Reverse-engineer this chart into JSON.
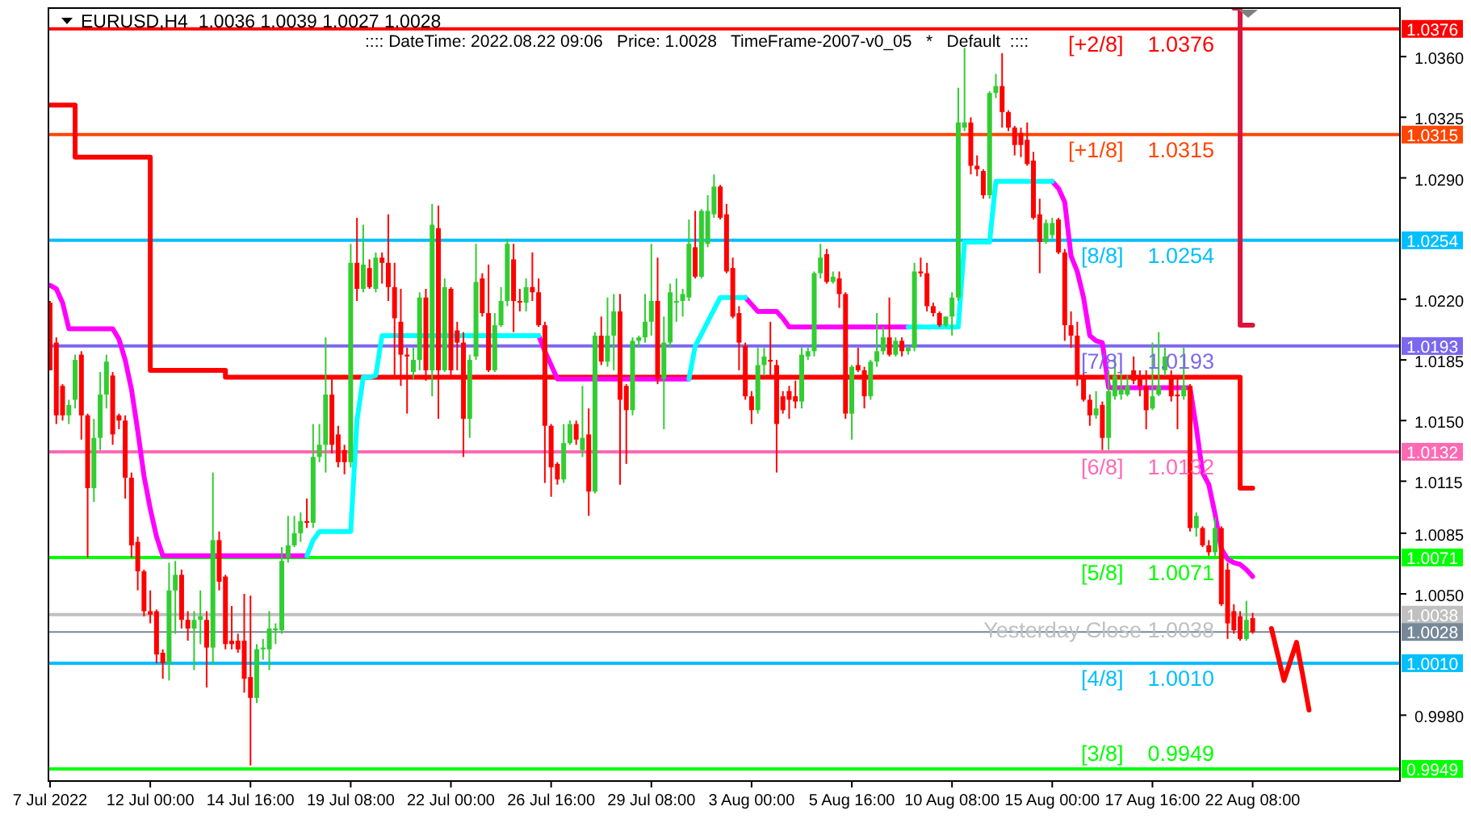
{
  "chart_data": {
    "type": "candlestick",
    "title": "EURUSD,H4  1.0036 1.0039 1.0027 1.0028",
    "subtitle": ":::: DateTime: 2022.08.22 09:06   Price: 1.0028   TimeFrame-2007-v0_05   *   Default  ::::",
    "categories": [
      "7 Jul 2022",
      null,
      null,
      null,
      null,
      null,
      null,
      null,
      null,
      null,
      null,
      null,
      null,
      null,
      null,
      null,
      "12 Jul 00:00",
      null,
      null,
      null,
      null,
      null,
      null,
      null,
      null,
      null,
      null,
      null,
      null,
      null,
      null,
      null,
      "14 Jul 16:00",
      null,
      null,
      null,
      null,
      null,
      null,
      null,
      null,
      null,
      null,
      null,
      null,
      null,
      null,
      null,
      "19 Jul 08:00",
      null,
      null,
      null,
      null,
      null,
      null,
      null,
      null,
      null,
      null,
      null,
      null,
      null,
      null,
      null,
      "22 Jul 00:00",
      null,
      null,
      null,
      null,
      null,
      null,
      null,
      null,
      null,
      null,
      null,
      null,
      null,
      null,
      null,
      "26 Jul 16:00",
      null,
      null,
      null,
      null,
      null,
      null,
      null,
      null,
      null,
      null,
      null,
      null,
      null,
      null,
      null,
      "29 Jul 08:00",
      null,
      null,
      null,
      null,
      null,
      null,
      null,
      null,
      null,
      null,
      null,
      null,
      null,
      null,
      null,
      "3 Aug 00:00",
      null,
      null,
      null,
      null,
      null,
      null,
      null,
      null,
      null,
      null,
      null,
      null,
      null,
      null,
      null,
      "5 Aug 16:00",
      null,
      null,
      null,
      null,
      null,
      null,
      null,
      null,
      null,
      null,
      null,
      null,
      null,
      null,
      null,
      "10 Aug 08:00",
      null,
      null,
      null,
      null,
      null,
      null,
      null,
      null,
      null,
      null,
      null,
      null,
      null,
      null,
      null,
      "15 Aug 00:00",
      null,
      null,
      null,
      null,
      null,
      null,
      null,
      null,
      null,
      null,
      null,
      null,
      null,
      null,
      null,
      "17 Aug 16:00",
      null,
      null,
      null,
      null,
      null,
      null,
      null,
      null,
      null,
      null,
      null,
      null,
      null,
      null,
      null,
      "22 Aug 08:00",
      null,
      null,
      null,
      null,
      null,
      null,
      null,
      null,
      null,
      null,
      null,
      null,
      null,
      null,
      null,
      null,
      null,
      null,
      null,
      null,
      null,
      null,
      null
    ],
    "ohlc": [
      [
        1.0218,
        1.0219,
        1.0179,
        1.0179
      ],
      [
        1.0195,
        1.0198,
        1.0148,
        1.0153
      ],
      [
        1.017,
        1.0171,
        1.015,
        1.0153
      ],
      [
        1.0153,
        1.0162,
        1.0148,
        1.0159
      ],
      [
        1.0162,
        1.0188,
        1.0157,
        1.0185
      ],
      [
        1.0188,
        1.019,
        1.0139,
        1.0153
      ],
      [
        1.0153,
        1.0154,
        1.0071,
        1.0111
      ],
      [
        1.0111,
        1.0151,
        1.0103,
        1.014
      ],
      [
        1.014,
        1.0178,
        1.0133,
        1.0165
      ],
      [
        1.0165,
        1.0188,
        1.0157,
        1.0184
      ],
      [
        1.0176,
        1.0178,
        1.0136,
        1.0142
      ],
      [
        1.0153,
        1.0154,
        1.0145,
        1.015
      ],
      [
        1.015,
        1.0153,
        1.0105,
        1.0117
      ],
      [
        1.0117,
        1.012,
        1.0071,
        1.0078
      ],
      [
        1.008,
        1.0083,
        1.0052,
        1.0063
      ],
      [
        1.0063,
        1.0064,
        1.0037,
        1.004
      ],
      [
        1.004,
        1.0052,
        1.0033,
        1.0038
      ],
      [
        1.004,
        1.0041,
        1.001,
        1.0015
      ],
      [
        1.0016,
        1.0018,
        1.0001,
        1.001
      ],
      [
        1.001,
        1.0068,
        1.0,
        1.0052
      ],
      [
        1.0052,
        1.0069,
        1.0027,
        1.0061
      ],
      [
        1.0061,
        1.0064,
        1.003,
        1.0035
      ],
      [
        1.0035,
        1.004,
        1.0023,
        1.003
      ],
      [
        1.003,
        1.004,
        1.0006,
        1.0035
      ],
      [
        1.0035,
        1.0052,
        1.0021,
        1.0037
      ],
      [
        1.0035,
        1.004,
        0.9996,
        1.0019
      ],
      [
        1.0019,
        1.012,
        1.0009,
        1.0081
      ],
      [
        1.0081,
        1.0086,
        1.0052,
        1.0057
      ],
      [
        1.006,
        1.0061,
        1.0018,
        1.0021
      ],
      [
        1.0023,
        1.0043,
        1.0018,
        1.0021
      ],
      [
        1.0023,
        1.0027,
        1.0016,
        1.0018
      ],
      [
        1.0023,
        1.005,
        0.9993,
        1.0001
      ],
      [
        1.0002,
        1.0049,
        0.9951,
        0.999
      ],
      [
        0.999,
        1.0021,
        0.9987,
        1.0018
      ],
      [
        1.0018,
        1.0024,
        1.0012,
        1.0019
      ],
      [
        1.0018,
        1.004,
        1.0006,
        1.003
      ],
      [
        1.0029,
        1.0033,
        1.0021,
        1.003
      ],
      [
        1.0029,
        1.0077,
        1.0027,
        1.0069
      ],
      [
        1.0071,
        1.0095,
        1.0068,
        1.0078
      ],
      [
        1.0078,
        1.0095,
        1.0077,
        1.0085
      ],
      [
        1.0085,
        1.0097,
        1.008,
        1.0092
      ],
      [
        1.0092,
        1.0105,
        1.0088,
        1.0091
      ],
      [
        1.0091,
        1.0148,
        1.0088,
        1.0129
      ],
      [
        1.0129,
        1.0148,
        1.0126,
        1.0136
      ],
      [
        1.0136,
        1.0198,
        1.012,
        1.0165
      ],
      [
        1.0165,
        1.0176,
        1.0131,
        1.0136
      ],
      [
        1.0142,
        1.0147,
        1.0123,
        1.0126
      ],
      [
        1.0133,
        1.0136,
        1.0119,
        1.0126
      ],
      [
        1.0126,
        1.0252,
        1.0123,
        1.0241
      ],
      [
        1.0241,
        1.0267,
        1.0219,
        1.0226
      ],
      [
        1.0226,
        1.0263,
        1.0224,
        1.024
      ],
      [
        1.0238,
        1.0243,
        1.0226,
        1.0227
      ],
      [
        1.0226,
        1.0247,
        1.0224,
        1.0244
      ],
      [
        1.0244,
        1.0247,
        1.0229,
        1.0241
      ],
      [
        1.0241,
        1.0269,
        1.0219,
        1.0227
      ],
      [
        1.0227,
        1.0241,
        1.0176,
        1.0209
      ],
      [
        1.0207,
        1.0226,
        1.017,
        1.0188
      ],
      [
        1.0188,
        1.0192,
        1.0154,
        1.0187
      ],
      [
        1.0178,
        1.0192,
        1.0174,
        1.0185
      ],
      [
        1.0185,
        1.0224,
        1.0179,
        1.0221
      ],
      [
        1.0221,
        1.0226,
        1.0173,
        1.0179
      ],
      [
        1.0179,
        1.0275,
        1.0164,
        1.0263
      ],
      [
        1.0261,
        1.0274,
        1.0151,
        1.0179
      ],
      [
        1.0179,
        1.0232,
        1.0178,
        1.0227
      ],
      [
        1.0226,
        1.0227,
        1.0176,
        1.0179
      ],
      [
        1.0202,
        1.0207,
        1.0179,
        1.0195
      ],
      [
        1.0195,
        1.0201,
        1.0129,
        1.0151
      ],
      [
        1.0151,
        1.0188,
        1.014,
        1.0185
      ],
      [
        1.0187,
        1.0252,
        1.0185,
        1.023
      ],
      [
        1.0232,
        1.0235,
        1.021,
        1.0212
      ],
      [
        1.0212,
        1.024,
        1.0178,
        1.0179
      ],
      [
        1.0179,
        1.0212,
        1.0178,
        1.0205
      ],
      [
        1.0205,
        1.0227,
        1.0204,
        1.0219
      ],
      [
        1.0219,
        1.0255,
        1.0216,
        1.0252
      ],
      [
        1.0243,
        1.0252,
        1.0201,
        1.0219
      ],
      [
        1.0219,
        1.0226,
        1.0213,
        1.0218
      ],
      [
        1.0218,
        1.0232,
        1.0213,
        1.0227
      ],
      [
        1.0227,
        1.0247,
        1.0219,
        1.0224
      ],
      [
        1.0224,
        1.0232,
        1.0204,
        1.0205
      ],
      [
        1.0205,
        1.0207,
        1.0114,
        1.0147
      ],
      [
        1.0147,
        1.0148,
        1.0106,
        1.0123
      ],
      [
        1.0125,
        1.0126,
        1.0113,
        1.0116
      ],
      [
        1.0116,
        1.0148,
        1.0114,
        1.0137
      ],
      [
        1.0137,
        1.015,
        1.0136,
        1.0148
      ],
      [
        1.0148,
        1.015,
        1.0136,
        1.0139
      ],
      [
        1.0133,
        1.017,
        1.0129,
        1.014
      ],
      [
        1.0142,
        1.0157,
        1.0095,
        1.0109
      ],
      [
        1.0109,
        1.0201,
        1.0108,
        1.0199
      ],
      [
        1.0199,
        1.021,
        1.0182,
        1.0184
      ],
      [
        1.0184,
        1.0221,
        1.0181,
        1.0199
      ],
      [
        1.0199,
        1.0223,
        1.0179,
        1.0213
      ],
      [
        1.0213,
        1.0223,
        1.0113,
        1.0162
      ],
      [
        1.017,
        1.0171,
        1.0125,
        1.0156
      ],
      [
        1.0156,
        1.0198,
        1.0153,
        1.0196
      ],
      [
        1.0196,
        1.0199,
        1.0192,
        1.0198
      ],
      [
        1.0198,
        1.0223,
        1.0195,
        1.0207
      ],
      [
        1.0207,
        1.0252,
        1.0199,
        1.0219
      ],
      [
        1.0219,
        1.0244,
        1.0171,
        1.0174
      ],
      [
        1.0174,
        1.021,
        1.0145,
        1.0195
      ],
      [
        1.0195,
        1.0229,
        1.0192,
        1.0224
      ],
      [
        1.0218,
        1.0232,
        1.0207,
        1.0219
      ],
      [
        1.0219,
        1.0226,
        1.021,
        1.0223
      ],
      [
        1.0221,
        1.0266,
        1.0219,
        1.0252
      ],
      [
        1.025,
        1.0271,
        1.0232,
        1.0233
      ],
      [
        1.0233,
        1.0272,
        1.0232,
        1.0271
      ],
      [
        1.0252,
        1.028,
        1.025,
        1.0271
      ],
      [
        1.0269,
        1.0292,
        1.0267,
        1.0285
      ],
      [
        1.0285,
        1.0286,
        1.0266,
        1.0267
      ],
      [
        1.0269,
        1.0275,
        1.0235,
        1.0236
      ],
      [
        1.0238,
        1.0244,
        1.0209,
        1.021
      ],
      [
        1.0212,
        1.0216,
        1.0179,
        1.0195
      ],
      [
        1.0193,
        1.0195,
        1.0162,
        1.0164
      ],
      [
        1.0164,
        1.0167,
        1.0148,
        1.0156
      ],
      [
        1.0156,
        1.0192,
        1.0154,
        1.0182
      ],
      [
        1.0182,
        1.0192,
        1.0176,
        1.0187
      ],
      [
        1.0185,
        1.0207,
        1.0176,
        1.0184
      ],
      [
        1.0182,
        1.0185,
        1.012,
        1.0148
      ],
      [
        1.0164,
        1.0167,
        1.0154,
        1.0156
      ],
      [
        1.0167,
        1.017,
        1.0151,
        1.0162
      ],
      [
        1.0164,
        1.0173,
        1.0157,
        1.0161
      ],
      [
        1.0161,
        1.0192,
        1.0157,
        1.0188
      ],
      [
        1.0187,
        1.0192,
        1.0185,
        1.019
      ],
      [
        1.019,
        1.0236,
        1.0187,
        1.0235
      ],
      [
        1.0235,
        1.0252,
        1.0232,
        1.0244
      ],
      [
        1.0246,
        1.0249,
        1.0229,
        1.023
      ],
      [
        1.023,
        1.0236,
        1.0229,
        1.0233
      ],
      [
        1.0232,
        1.0236,
        1.0215,
        1.0223
      ],
      [
        1.0223,
        1.0224,
        1.0151,
        1.0154
      ],
      [
        1.0154,
        1.0182,
        1.0139,
        1.0181
      ],
      [
        1.0182,
        1.0192,
        1.0178,
        1.0179
      ],
      [
        1.0179,
        1.0181,
        1.0157,
        1.0164
      ],
      [
        1.0164,
        1.0185,
        1.0162,
        1.0184
      ],
      [
        1.0184,
        1.0212,
        1.0181,
        1.019
      ],
      [
        1.019,
        1.0204,
        1.0188,
        1.0198
      ],
      [
        1.0198,
        1.0221,
        1.0187,
        1.0188
      ],
      [
        1.0188,
        1.0198,
        1.0187,
        1.0196
      ],
      [
        1.0196,
        1.0198,
        1.0187,
        1.019
      ],
      [
        1.019,
        1.0193,
        1.0188,
        1.0192
      ],
      [
        1.0192,
        1.0241,
        1.019,
        1.0236
      ],
      [
        1.0236,
        1.0244,
        1.0233,
        1.0235
      ],
      [
        1.0235,
        1.0241,
        1.0213,
        1.0216
      ],
      [
        1.0216,
        1.0218,
        1.021,
        1.0212
      ],
      [
        1.0212,
        1.0213,
        1.0204,
        1.0205
      ],
      [
        1.0205,
        1.021,
        1.0204,
        1.021
      ],
      [
        1.021,
        1.0224,
        1.0199,
        1.0221
      ],
      [
        1.0221,
        1.0342,
        1.0219,
        1.0322
      ],
      [
        1.0319,
        1.0365,
        1.0317,
        1.0322
      ],
      [
        1.0322,
        1.0325,
        1.0292,
        1.0297
      ],
      [
        1.0297,
        1.0303,
        1.0291,
        1.0295
      ],
      [
        1.0294,
        1.0295,
        1.0278,
        1.028
      ],
      [
        1.028,
        1.034,
        1.0278,
        1.0339
      ],
      [
        1.0339,
        1.035,
        1.0336,
        1.0343
      ],
      [
        1.0343,
        1.0362,
        1.0319,
        1.0328
      ],
      [
        1.0328,
        1.0329,
        1.0317,
        1.0319
      ],
      [
        1.0319,
        1.032,
        1.0303,
        1.0309
      ],
      [
        1.0316,
        1.0319,
        1.0302,
        1.0309
      ],
      [
        1.0312,
        1.0322,
        1.0297,
        1.0298
      ],
      [
        1.03,
        1.0305,
        1.0266,
        1.0267
      ],
      [
        1.0269,
        1.0278,
        1.0235,
        1.0253
      ],
      [
        1.0253,
        1.0266,
        1.0252,
        1.0264
      ],
      [
        1.0257,
        1.0267,
        1.0255,
        1.0264
      ],
      [
        1.0266,
        1.0267,
        1.0246,
        1.0247
      ],
      [
        1.0247,
        1.0249,
        1.0196,
        1.0205
      ],
      [
        1.0205,
        1.0213,
        1.0192,
        1.0199
      ],
      [
        1.0199,
        1.0207,
        1.017,
        1.0174
      ],
      [
        1.0176,
        1.0178,
        1.0161,
        1.0162
      ],
      [
        1.0162,
        1.0165,
        1.0147,
        1.0153
      ],
      [
        1.0153,
        1.0167,
        1.0151,
        1.0157
      ],
      [
        1.0159,
        1.0161,
        1.0133,
        1.014
      ],
      [
        1.014,
        1.0179,
        1.0133,
        1.0167
      ],
      [
        1.0164,
        1.0185,
        1.0162,
        1.0176
      ],
      [
        1.0165,
        1.0179,
        1.0162,
        1.0168
      ],
      [
        1.0165,
        1.0176,
        1.0164,
        1.017
      ],
      [
        1.0179,
        1.0187,
        1.0171,
        1.0173
      ],
      [
        1.0176,
        1.0179,
        1.0164,
        1.017
      ],
      [
        1.017,
        1.0179,
        1.0145,
        1.0156
      ],
      [
        1.0157,
        1.0195,
        1.0156,
        1.0164
      ],
      [
        1.0165,
        1.0201,
        1.0164,
        1.017
      ],
      [
        1.0179,
        1.0192,
        1.0176,
        1.0187
      ],
      [
        1.0176,
        1.0179,
        1.0161,
        1.0164
      ],
      [
        1.0165,
        1.0176,
        1.0145,
        1.0164
      ],
      [
        1.0164,
        1.0192,
        1.0162,
        1.017
      ],
      [
        1.017,
        1.0171,
        1.0086,
        1.0088
      ],
      [
        1.0088,
        1.0097,
        1.0083,
        1.0095
      ],
      [
        1.0088,
        1.0089,
        1.0077,
        1.0078
      ],
      [
        1.0078,
        1.0081,
        1.0072,
        1.0074
      ],
      [
        1.0074,
        1.0094,
        1.0072,
        1.0088
      ],
      [
        1.0088,
        1.0089,
        1.0043,
        1.0044
      ],
      [
        1.0064,
        1.0068,
        1.0024,
        1.0033
      ],
      [
        1.004,
        1.0044,
        1.0027,
        1.0029
      ],
      [
        1.0037,
        1.004,
        1.0023,
        1.0024
      ],
      [
        1.0024,
        1.0046,
        1.0023,
        1.0035
      ],
      [
        1.0036,
        1.0039,
        1.0027,
        1.0028
      ],
      null,
      null,
      null,
      null,
      null,
      null,
      null,
      null,
      null,
      null,
      null,
      null,
      null,
      null,
      null,
      null,
      null,
      null,
      null,
      null,
      null,
      null,
      null
    ],
    "ylim": [
      0.9942,
      1.0388
    ],
    "yticks": [
      {
        "value": 1.0376,
        "label": "1.0376"
      },
      {
        "value": 1.036,
        "label": "1.0360"
      },
      {
        "value": 1.0325,
        "label": "1.0325"
      },
      {
        "value": 1.0315,
        "label": "1.0315"
      },
      {
        "value": 1.029,
        "label": "1.0290"
      },
      {
        "value": 1.0254,
        "label": "1.0254"
      },
      {
        "value": 1.022,
        "label": "1.0220"
      },
      {
        "value": 1.0193,
        "label": "1.0193"
      },
      {
        "value": 1.0185,
        "label": "1.0185"
      },
      {
        "value": 1.015,
        "label": "1.0150"
      },
      {
        "value": 1.0132,
        "label": "1.0132"
      },
      {
        "value": 1.0115,
        "label": "1.0115"
      },
      {
        "value": 1.0085,
        "label": "1.0085"
      },
      {
        "value": 1.0071,
        "label": "1.0071"
      },
      {
        "value": 1.005,
        "label": "1.0050"
      },
      {
        "value": 1.0038,
        "label": "1.0038"
      },
      {
        "value": 1.0028,
        "label": "1.0028"
      },
      {
        "value": 1.001,
        "label": "1.0010"
      },
      {
        "value": 0.998,
        "label": "0.9980"
      },
      {
        "value": 0.9949,
        "label": "0.9949"
      }
    ],
    "series": [
      {
        "type": "step",
        "color": "#ff0000",
        "values": [
          1.0332,
          1.0332,
          1.0332,
          1.0332,
          1.0302,
          1.0302,
          1.0302,
          1.0302,
          1.0302,
          1.0302,
          1.0302,
          1.0302,
          1.0302,
          1.0302,
          1.0302,
          1.0302,
          1.0179,
          1.0179,
          1.0179,
          1.0179,
          1.0179,
          1.0179,
          1.0179,
          1.0179,
          1.0179,
          1.0179,
          1.0179,
          1.0179,
          1.0175,
          1.0175,
          1.0175,
          1.0175,
          1.0175,
          1.0175,
          1.0175,
          1.0175,
          1.0175,
          1.0175,
          1.0175,
          1.0175,
          1.0175,
          1.0175,
          1.0175,
          1.0175,
          1.0175,
          1.0175,
          1.0175,
          1.0175,
          1.0175,
          1.0175,
          1.0175,
          1.0175,
          1.0175,
          1.0175,
          1.0175,
          1.0175,
          1.0175,
          1.0175,
          1.0175,
          1.0175,
          1.0175,
          1.0175,
          1.0175,
          1.0175,
          1.0175,
          1.0175,
          1.0175,
          1.0175,
          1.0175,
          1.0175,
          1.0175,
          1.0175,
          1.0175,
          1.0175,
          1.0175,
          1.0175,
          1.0175,
          1.0175,
          1.0175,
          1.0175,
          1.0175,
          1.0175,
          1.0175,
          1.0175,
          1.0175,
          1.0175,
          1.0175,
          1.0175,
          1.0175,
          1.0175,
          1.0175,
          1.0175,
          1.0175,
          1.0175,
          1.0175,
          1.0175,
          1.0175,
          1.0175,
          1.0175,
          1.0175,
          1.0175,
          1.0175,
          1.0175,
          1.0175,
          1.0175,
          1.0175,
          1.0175,
          1.0175,
          1.0175,
          1.0175,
          1.0175,
          1.0175,
          1.0175,
          1.0175,
          1.0175,
          1.0175,
          1.0175,
          1.0175,
          1.0175,
          1.0175,
          1.0175,
          1.0175,
          1.0175,
          1.0175,
          1.0175,
          1.0175,
          1.0175,
          1.0175,
          1.0175,
          1.0175,
          1.0175,
          1.0175,
          1.0175,
          1.0175,
          1.0175,
          1.0175,
          1.0175,
          1.0175,
          1.0175,
          1.0175,
          1.0175,
          1.0175,
          1.0175,
          1.0175,
          1.0175,
          1.0175,
          1.0175,
          1.0175,
          1.0175,
          1.0175,
          1.0175,
          1.0175,
          1.0175,
          1.0175,
          1.0175,
          1.0175,
          1.0175,
          1.0175,
          1.0175,
          1.0175,
          1.0175,
          1.0175,
          1.0175,
          1.0175,
          1.0175,
          1.0175,
          1.0175,
          1.0175,
          1.0175,
          1.0175,
          1.0175,
          1.0175,
          1.0175,
          1.0175,
          1.0175,
          1.0175,
          1.0175,
          1.0175,
          1.0175,
          1.0175,
          1.0175,
          1.0175,
          1.0175,
          1.0175,
          1.0175,
          1.0175,
          1.0175,
          1.0175,
          1.0175,
          1.0175,
          1.0111,
          1.0111,
          1.0111,
          null,
          null,
          null,
          null,
          null,
          null,
          null,
          null,
          null,
          null,
          null,
          null,
          null,
          null,
          null,
          null,
          null,
          null,
          null,
          null,
          null,
          null,
          null
        ]
      },
      {
        "type": "step",
        "color": "#dc143c",
        "values": [
          null,
          null,
          null,
          null,
          null,
          null,
          null,
          null,
          null,
          null,
          null,
          null,
          null,
          null,
          null,
          null,
          null,
          null,
          null,
          null,
          null,
          null,
          null,
          null,
          null,
          null,
          null,
          null,
          null,
          null,
          null,
          null,
          null,
          null,
          null,
          null,
          null,
          null,
          null,
          null,
          null,
          null,
          null,
          null,
          null,
          null,
          null,
          null,
          null,
          null,
          null,
          null,
          null,
          null,
          null,
          null,
          null,
          null,
          null,
          null,
          null,
          null,
          null,
          null,
          null,
          null,
          null,
          null,
          null,
          null,
          null,
          null,
          null,
          null,
          null,
          null,
          null,
          null,
          null,
          null,
          null,
          null,
          null,
          null,
          null,
          null,
          null,
          null,
          null,
          null,
          null,
          null,
          null,
          null,
          null,
          null,
          null,
          null,
          null,
          null,
          null,
          null,
          null,
          null,
          null,
          null,
          null,
          null,
          null,
          null,
          null,
          null,
          null,
          null,
          null,
          null,
          null,
          null,
          null,
          null,
          null,
          null,
          null,
          null,
          null,
          null,
          null,
          null,
          null,
          null,
          null,
          null,
          null,
          null,
          null,
          null,
          null,
          null,
          null,
          null,
          null,
          null,
          null,
          null,
          null,
          null,
          null,
          null,
          null,
          null,
          null,
          null,
          null,
          null,
          null,
          null,
          null,
          null,
          null,
          null,
          null,
          null,
          null,
          null,
          null,
          null,
          null,
          null,
          null,
          null,
          null,
          null,
          null,
          null,
          null,
          null,
          null,
          null,
          null,
          null,
          null,
          null,
          null,
          null,
          null,
          null,
          null,
          null,
          null,
          1.0388,
          1.0205,
          1.0205,
          1.0205,
          null,
          null,
          null,
          null,
          null,
          null,
          null,
          null,
          null,
          null,
          null,
          null,
          null,
          null,
          null,
          null,
          null,
          null,
          null,
          null,
          null,
          null,
          null
        ]
      },
      {
        "type": "line",
        "color": "#ff00ff",
        "values": [
          1.0228,
          1.0226,
          1.0218,
          1.0203,
          1.0203,
          1.0203,
          1.0203,
          1.0203,
          1.0203,
          1.0203,
          1.0203,
          1.0197,
          1.0185,
          1.0168,
          1.0144,
          1.0118,
          1.0099,
          1.0083,
          1.0072,
          1.0072,
          1.0072,
          1.0072,
          1.0072,
          1.0072,
          1.0072,
          1.0072,
          1.0072,
          1.0072,
          1.0072,
          1.0072,
          1.0072,
          1.0072,
          1.0072,
          1.0072,
          1.0072,
          1.0072,
          1.0072,
          1.0072,
          1.0072,
          1.0072,
          1.0072,
          1.0072,
          null,
          null,
          null,
          null,
          null,
          null,
          null,
          null,
          null,
          null,
          null,
          null,
          null,
          null,
          null,
          null,
          null,
          null,
          null,
          null,
          null,
          null,
          null,
          null,
          null,
          null,
          null,
          null,
          null,
          null,
          null,
          null,
          null,
          null,
          null,
          null,
          1.0199,
          1.019,
          1.0182,
          1.0174,
          1.0174,
          1.0174,
          1.0174,
          1.0174,
          1.0174,
          1.0174,
          1.0174,
          1.0174,
          1.0174,
          1.0174,
          1.0174,
          1.0174,
          1.0174,
          1.0174,
          1.0174,
          1.0174,
          1.0174,
          1.0174,
          1.0174,
          1.0174,
          1.0174,
          null,
          null,
          null,
          null,
          null,
          null,
          null,
          null,
          1.0221,
          1.0217,
          1.0213,
          1.0213,
          1.0213,
          1.0213,
          1.0209,
          1.0204,
          1.0204,
          1.0204,
          1.0204,
          1.0204,
          1.0204,
          1.0204,
          1.0204,
          1.0204,
          1.0204,
          1.0204,
          1.0204,
          1.0204,
          1.0204,
          1.0204,
          1.0204,
          1.0204,
          1.0204,
          1.0204,
          1.0204,
          null,
          null,
          null,
          null,
          null,
          null,
          null,
          null,
          null,
          null,
          null,
          null,
          null,
          null,
          null,
          null,
          null,
          null,
          null,
          null,
          null,
          null,
          1.0288,
          1.0284,
          1.0276,
          1.0245,
          1.0236,
          1.0221,
          1.0199,
          1.0196,
          1.0195,
          1.0169,
          1.0169,
          1.0169,
          1.0169,
          1.0169,
          1.0169,
          1.0169,
          1.0169,
          1.0169,
          1.0169,
          1.0169,
          1.0169,
          1.0169,
          1.0169,
          1.0146,
          1.012,
          1.0113,
          1.0096,
          1.0076,
          1.007,
          1.0068,
          1.0067,
          1.0064,
          1.006,
          null,
          null,
          null,
          null,
          null,
          null,
          null,
          null,
          null,
          null,
          null,
          null,
          null,
          null,
          null,
          null,
          null,
          null,
          null,
          null,
          null,
          null,
          null
        ]
      },
      {
        "type": "line",
        "color": "#00ffff",
        "values": [
          null,
          null,
          null,
          null,
          null,
          null,
          null,
          null,
          null,
          null,
          null,
          null,
          null,
          null,
          null,
          null,
          null,
          null,
          null,
          null,
          null,
          null,
          null,
          null,
          null,
          null,
          null,
          null,
          null,
          null,
          null,
          null,
          null,
          null,
          null,
          null,
          null,
          null,
          null,
          null,
          null,
          1.0072,
          1.0081,
          1.0086,
          1.0086,
          1.0086,
          1.0086,
          1.0086,
          1.0086,
          1.015,
          1.0175,
          1.0175,
          1.0176,
          1.0199,
          1.0199,
          1.0199,
          1.0199,
          1.0199,
          1.0199,
          1.0199,
          1.0199,
          1.0199,
          1.0199,
          1.0199,
          1.0199,
          1.0199,
          1.0199,
          1.0199,
          1.0199,
          1.0199,
          1.0199,
          1.0199,
          1.0199,
          1.0199,
          1.0199,
          1.0199,
          1.0199,
          1.0199,
          1.0199,
          null,
          null,
          null,
          null,
          null,
          null,
          null,
          null,
          null,
          null,
          null,
          null,
          null,
          null,
          null,
          null,
          null,
          null,
          null,
          null,
          null,
          null,
          null,
          1.0174,
          1.0193,
          1.02,
          1.0207,
          1.0214,
          1.0221,
          1.0221,
          1.0221,
          1.0221,
          1.0221,
          null,
          null,
          null,
          null,
          null,
          null,
          null,
          null,
          null,
          null,
          null,
          null,
          null,
          null,
          null,
          null,
          null,
          null,
          null,
          null,
          null,
          null,
          null,
          null,
          null,
          1.0204,
          1.0204,
          1.0204,
          1.0204,
          1.0204,
          1.0204,
          1.0204,
          1.0204,
          1.0204,
          1.0253,
          1.0253,
          1.0253,
          1.0253,
          1.0253,
          1.0288,
          1.0288,
          1.0288,
          1.0288,
          1.0288,
          1.0288,
          1.0288,
          1.0288,
          1.0288,
          1.0288,
          null,
          null,
          null,
          null,
          null,
          null,
          null,
          null,
          null,
          null,
          null,
          null,
          null,
          null,
          null,
          null,
          null,
          null,
          null,
          null,
          null,
          null,
          null,
          null,
          null,
          null,
          null,
          null,
          null,
          null,
          null,
          null,
          null,
          null,
          null,
          null,
          null,
          null,
          null,
          null,
          null,
          null,
          null,
          null,
          null,
          null,
          null,
          null,
          null,
          null,
          null,
          null,
          null,
          null,
          null
        ]
      },
      {
        "type": "line",
        "color": "#ff0000",
        "values": [
          null,
          null,
          null,
          null,
          null,
          null,
          null,
          null,
          null,
          null,
          null,
          null,
          null,
          null,
          null,
          null,
          null,
          null,
          null,
          null,
          null,
          null,
          null,
          null,
          null,
          null,
          null,
          null,
          null,
          null,
          null,
          null,
          null,
          null,
          null,
          null,
          null,
          null,
          null,
          null,
          null,
          null,
          null,
          null,
          null,
          null,
          null,
          null,
          null,
          null,
          null,
          null,
          null,
          null,
          null,
          null,
          null,
          null,
          null,
          null,
          null,
          null,
          null,
          null,
          null,
          null,
          null,
          null,
          null,
          null,
          null,
          null,
          null,
          null,
          null,
          null,
          null,
          null,
          null,
          null,
          null,
          null,
          null,
          null,
          null,
          null,
          null,
          null,
          null,
          null,
          null,
          null,
          null,
          null,
          null,
          null,
          null,
          null,
          null,
          null,
          null,
          null,
          null,
          null,
          null,
          null,
          null,
          null,
          null,
          null,
          null,
          null,
          null,
          null,
          null,
          null,
          null,
          null,
          null,
          null,
          null,
          null,
          null,
          null,
          null,
          null,
          null,
          null,
          null,
          null,
          null,
          null,
          null,
          null,
          null,
          null,
          null,
          null,
          null,
          null,
          null,
          null,
          null,
          null,
          null,
          null,
          null,
          null,
          null,
          null,
          null,
          null,
          null,
          null,
          null,
          null,
          null,
          null,
          null,
          null,
          null,
          null,
          null,
          null,
          null,
          null,
          null,
          null,
          null,
          null,
          null,
          null,
          null,
          null,
          null,
          null,
          null,
          null,
          null,
          null,
          null,
          null,
          null,
          null,
          null,
          null,
          null,
          null,
          null,
          null,
          null,
          null,
          null,
          null,
          null,
          1.003,
          1.0015,
          1.0,
          1.0011,
          1.0022,
          1.0003,
          0.9983,
          null,
          null,
          null,
          null,
          null,
          null,
          null,
          null,
          null,
          null,
          null,
          null,
          null,
          null
        ]
      }
    ],
    "ref_lines": [
      {
        "axis": "y",
        "value": 1.0376,
        "label": "[+2/8]    1.0376",
        "color": "#ff0000"
      },
      {
        "axis": "y",
        "value": 1.0315,
        "label": "[+1/8]    1.0315",
        "color": "#ff4500"
      },
      {
        "axis": "y",
        "value": 1.0254,
        "label": "[8/8]    1.0254",
        "color": "#00bfff"
      },
      {
        "axis": "y",
        "value": 1.0193,
        "label": "[7/8]    1.0193",
        "color": "#7b68ee"
      },
      {
        "axis": "y",
        "value": 1.0132,
        "label": "[6/8]    1.0132",
        "color": "#ff69b4"
      },
      {
        "axis": "y",
        "value": 1.0071,
        "label": "[5/8]    1.0071",
        "color": "#00ff00"
      },
      {
        "axis": "y",
        "value": 1.0038,
        "label": "Yesterday Close 1.0038",
        "color": "#c0c0c0"
      },
      {
        "axis": "y",
        "value": 1.0028,
        "color": "#778899"
      },
      {
        "axis": "y",
        "value": 1.001,
        "label": "[4/8]    1.0010",
        "color": "#00bfff"
      },
      {
        "axis": "y",
        "value": 0.9949,
        "label": "[3/8]    0.9949",
        "color": "#00ff00"
      }
    ]
  }
}
